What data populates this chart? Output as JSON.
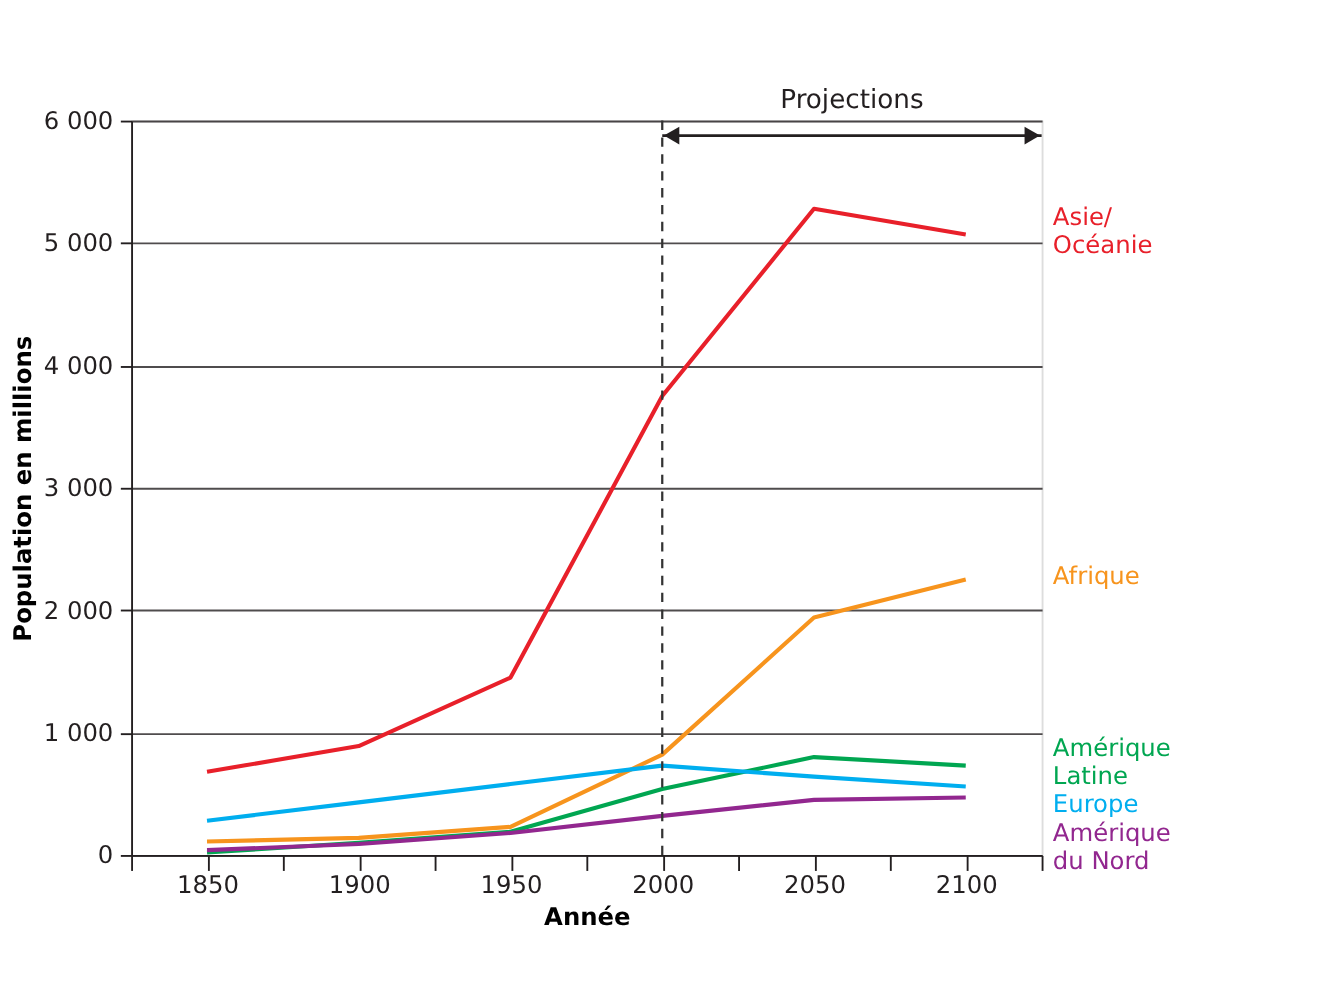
{
  "chart_data": {
    "type": "line",
    "xlabel": "Année",
    "ylabel": "Population en millions",
    "x": [
      1850,
      1900,
      1950,
      2000,
      2050,
      2100
    ],
    "series": [
      {
        "name": "Asie/ Océanie",
        "color": "#e8202a",
        "values": [
          680,
          890,
          1450,
          3750,
          5280,
          5070
        ]
      },
      {
        "name": "Afrique",
        "color": "#f7941d",
        "values": [
          110,
          140,
          230,
          820,
          1940,
          2250
        ]
      },
      {
        "name": "Amérique Latine",
        "color": "#00a651",
        "values": [
          20,
          100,
          190,
          540,
          800,
          730
        ]
      },
      {
        "name": "Europe",
        "color": "#00aeef",
        "values": [
          280,
          430,
          580,
          730,
          640,
          560
        ]
      },
      {
        "name": "Amérique du Nord",
        "color": "#92278f",
        "values": [
          40,
          90,
          180,
          320,
          450,
          470
        ]
      }
    ],
    "xlim": [
      1825,
      2125
    ],
    "xticks": [
      {
        "value": 1825,
        "label": null
      },
      1850,
      {
        "value": 1875,
        "label": null
      },
      1900,
      {
        "value": 1925,
        "label": null
      },
      1950,
      {
        "value": 1975,
        "label": null
      },
      2000,
      {
        "value": 2025,
        "label": null
      },
      2050,
      {
        "value": 2075,
        "label": null
      },
      2100,
      {
        "value": 2125,
        "label": null
      }
    ],
    "ylim": [
      0,
      6000
    ],
    "yticks": [
      {
        "value": 0,
        "label": "0"
      },
      {
        "value": 1000,
        "label": "1 000"
      },
      {
        "value": 2000,
        "label": "2 000"
      },
      {
        "value": 3000,
        "label": "3 000"
      },
      {
        "value": 4000,
        "label": "4 000"
      },
      {
        "value": 5000,
        "label": "5 000"
      },
      {
        "value": 6000,
        "label": "6 000"
      }
    ],
    "grid": "y",
    "legend": false,
    "marker": "none",
    "line_style": "solid",
    "ref_lines": [
      {
        "axis": "x",
        "value": 2000,
        "line_style": "dashed",
        "color": "#333333"
      }
    ],
    "annotations": [
      "Projections"
    ]
  }
}
